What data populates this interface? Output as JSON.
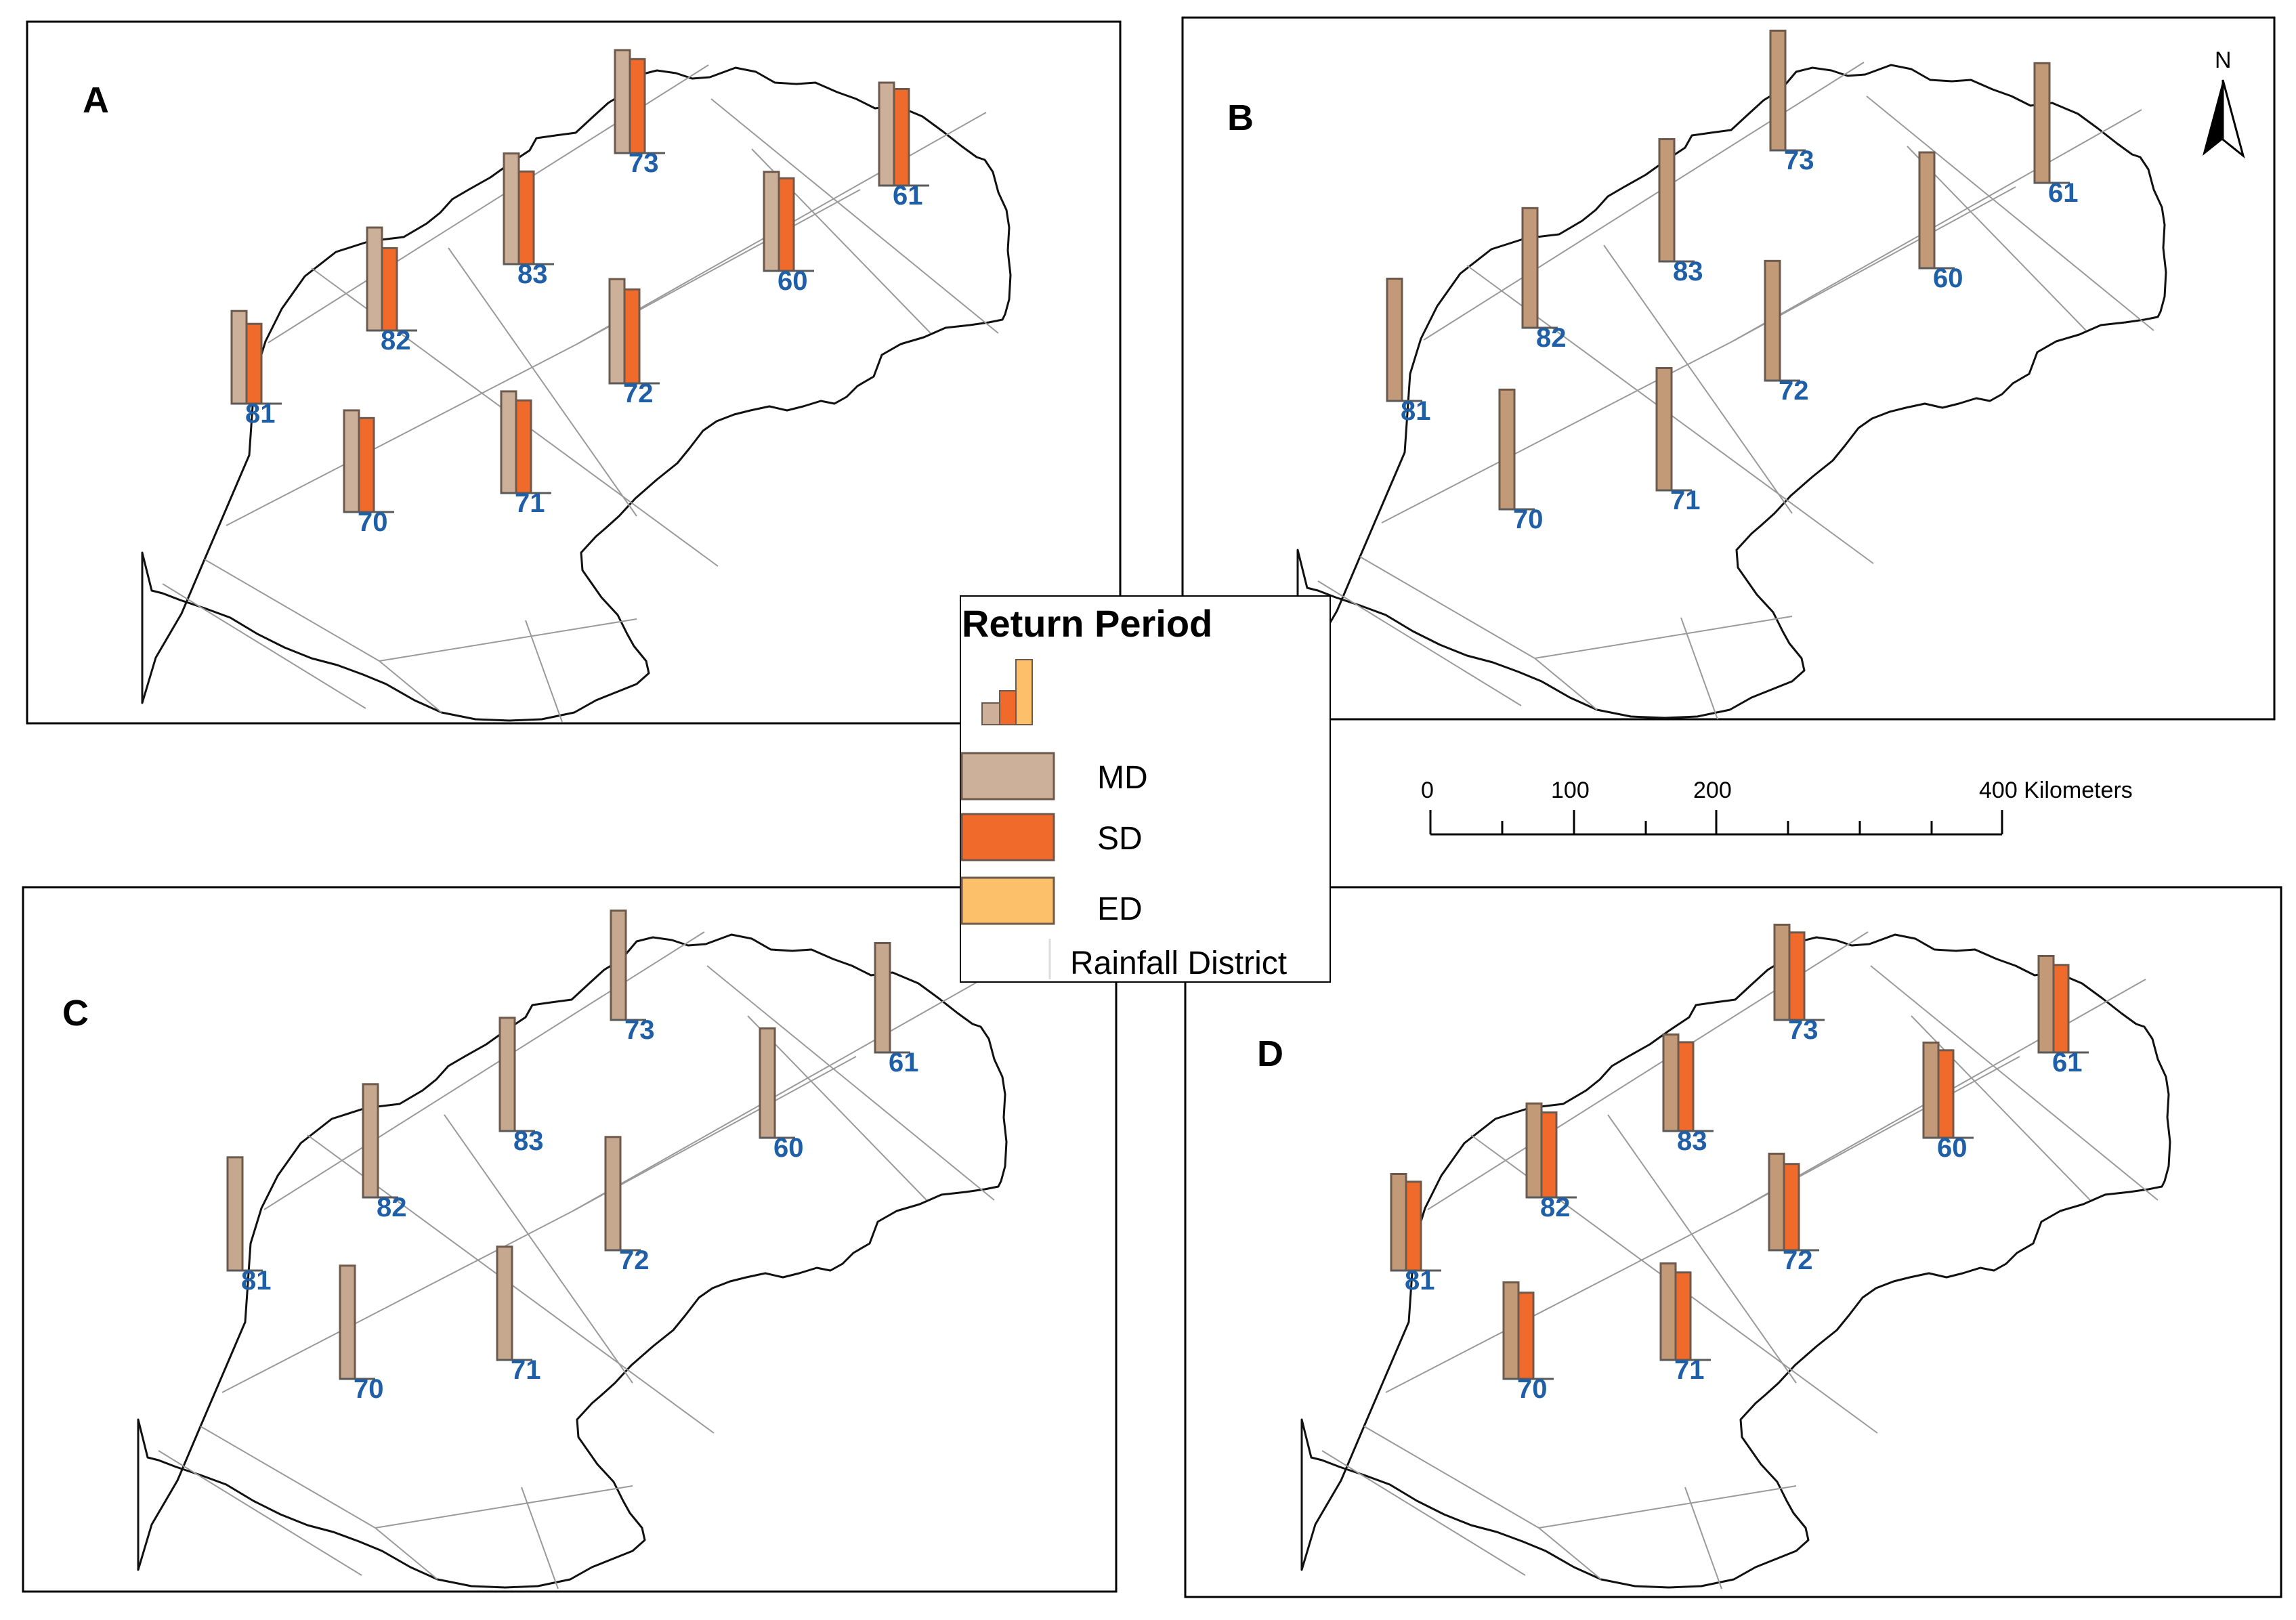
{
  "colors": {
    "md": "#cdb09a",
    "md_dark": "#c39a78",
    "sd": "#f06a2c",
    "ed": "#fcc06a",
    "label": "#1f5fa8",
    "outline": "#111111",
    "grid": "#9a9a9a",
    "bar_stroke": "#6e5a4c"
  },
  "legend": {
    "title": "Return Period",
    "items": [
      {
        "key": "md",
        "label": "MD"
      },
      {
        "key": "sd",
        "label": "SD"
      },
      {
        "key": "ed",
        "label": "ED"
      },
      {
        "key": "district",
        "label": "Rainfall District"
      }
    ]
  },
  "scale_bar": {
    "ticks": [
      "0",
      "100",
      "200",
      "400 Kilometers"
    ]
  },
  "north_arrow": {
    "label": "N"
  },
  "districts": [
    "81",
    "82",
    "83",
    "73",
    "60",
    "61",
    "70",
    "71",
    "72"
  ],
  "panels": [
    {
      "letter": "A",
      "md_shade": "light",
      "series": [
        "MD",
        "SD"
      ],
      "values": {
        "81": [
          0.72,
          0.62
        ],
        "82": [
          0.8,
          0.64
        ],
        "83": [
          0.86,
          0.72
        ],
        "73": [
          0.8,
          0.73
        ],
        "60": [
          0.77,
          0.72
        ],
        "61": [
          0.8,
          0.75
        ],
        "70": [
          0.79,
          0.73
        ],
        "71": [
          0.79,
          0.72
        ],
        "72": [
          0.81,
          0.73
        ]
      }
    },
    {
      "letter": "B",
      "md_shade": "dark",
      "series": [
        "MD"
      ],
      "values": {
        "81": [
          0.95
        ],
        "82": [
          0.93
        ],
        "83": [
          0.95
        ],
        "73": [
          0.93
        ],
        "60": [
          0.9
        ],
        "61": [
          0.93
        ],
        "70": [
          0.93
        ],
        "71": [
          0.95
        ],
        "72": [
          0.93
        ]
      }
    },
    {
      "letter": "C",
      "md_shade": "mid",
      "series": [
        "MD"
      ],
      "values": {
        "81": [
          0.88
        ],
        "82": [
          0.88
        ],
        "83": [
          0.88
        ],
        "73": [
          0.85
        ],
        "60": [
          0.85
        ],
        "61": [
          0.85
        ],
        "70": [
          0.88
        ],
        "71": [
          0.88
        ],
        "72": [
          0.88
        ]
      }
    },
    {
      "letter": "D",
      "md_shade": "dark",
      "series": [
        "MD",
        "SD"
      ],
      "values": {
        "81": [
          0.75,
          0.69
        ],
        "82": [
          0.73,
          0.66
        ],
        "83": [
          0.75,
          0.69
        ],
        "73": [
          0.74,
          0.68
        ],
        "60": [
          0.74,
          0.68
        ],
        "61": [
          0.75,
          0.68
        ],
        "70": [
          0.75,
          0.67
        ],
        "71": [
          0.75,
          0.68
        ],
        "72": [
          0.75,
          0.67
        ]
      }
    }
  ]
}
